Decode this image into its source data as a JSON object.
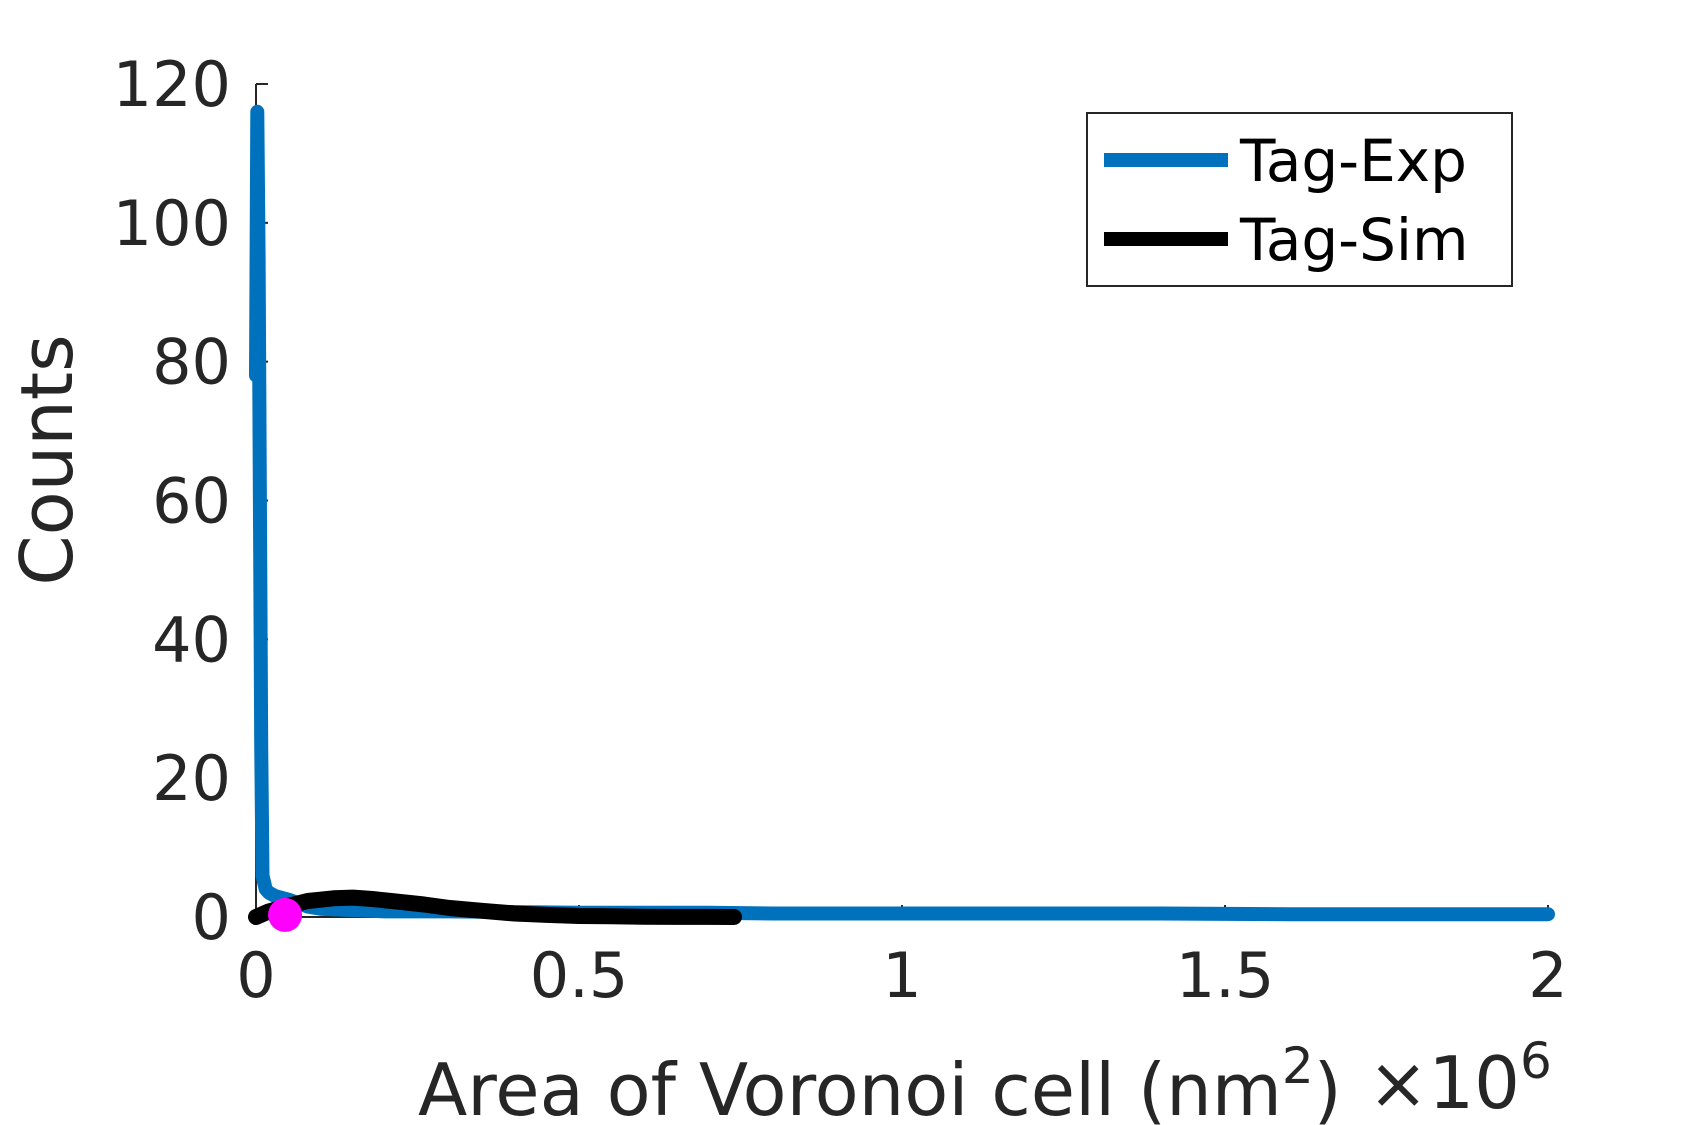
{
  "chart_data": {
    "type": "line",
    "title": "",
    "xlabel": "Area of Voronoi cell (nm",
    "xlabel_superscript": "2",
    "xlabel_suffix": ")",
    "x_multiplier": "×10",
    "x_multiplier_exponent": "6",
    "ylabel": "Counts",
    "xlim": [
      0,
      2
    ],
    "ylim": [
      0,
      120
    ],
    "x_ticks": [
      "0",
      "0.5",
      "1",
      "1.5",
      "2"
    ],
    "y_ticks": [
      "0",
      "20",
      "40",
      "60",
      "80",
      "100",
      "120"
    ],
    "grid": false,
    "legend_position": "top-right",
    "series": [
      {
        "name": "Tag-Exp",
        "color": "#0072BD",
        "x": [
          0,
          0.002,
          0.004,
          0.006,
          0.008,
          0.01,
          0.015,
          0.02,
          0.03,
          0.05,
          0.08,
          0.1,
          0.15,
          0.2,
          0.3,
          0.4,
          0.5,
          0.6,
          0.7,
          0.8,
          1.0,
          1.2,
          1.4,
          1.6,
          1.8,
          2.0
        ],
        "y": [
          78,
          116,
          95,
          60,
          25,
          6,
          4,
          3.5,
          3,
          2.5,
          1.5,
          1.2,
          1.0,
          0.8,
          0.8,
          0.7,
          0.6,
          0.6,
          0.6,
          0.5,
          0.5,
          0.5,
          0.5,
          0.4,
          0.4,
          0.4
        ]
      },
      {
        "name": "Tag-Sim",
        "color": "#000000",
        "x": [
          0,
          0.02,
          0.05,
          0.08,
          0.12,
          0.15,
          0.18,
          0.22,
          0.26,
          0.3,
          0.35,
          0.4,
          0.45,
          0.5,
          0.55,
          0.6,
          0.65,
          0.7,
          0.74
        ],
        "y": [
          0,
          0.8,
          1.6,
          2.3,
          2.7,
          2.8,
          2.6,
          2.2,
          1.8,
          1.3,
          0.9,
          0.5,
          0.3,
          0.15,
          0.1,
          0.05,
          0.02,
          0.01,
          0
        ]
      }
    ],
    "markers": [
      {
        "color": "#FF00FF",
        "x": 0.045,
        "y": 0.3
      }
    ]
  }
}
